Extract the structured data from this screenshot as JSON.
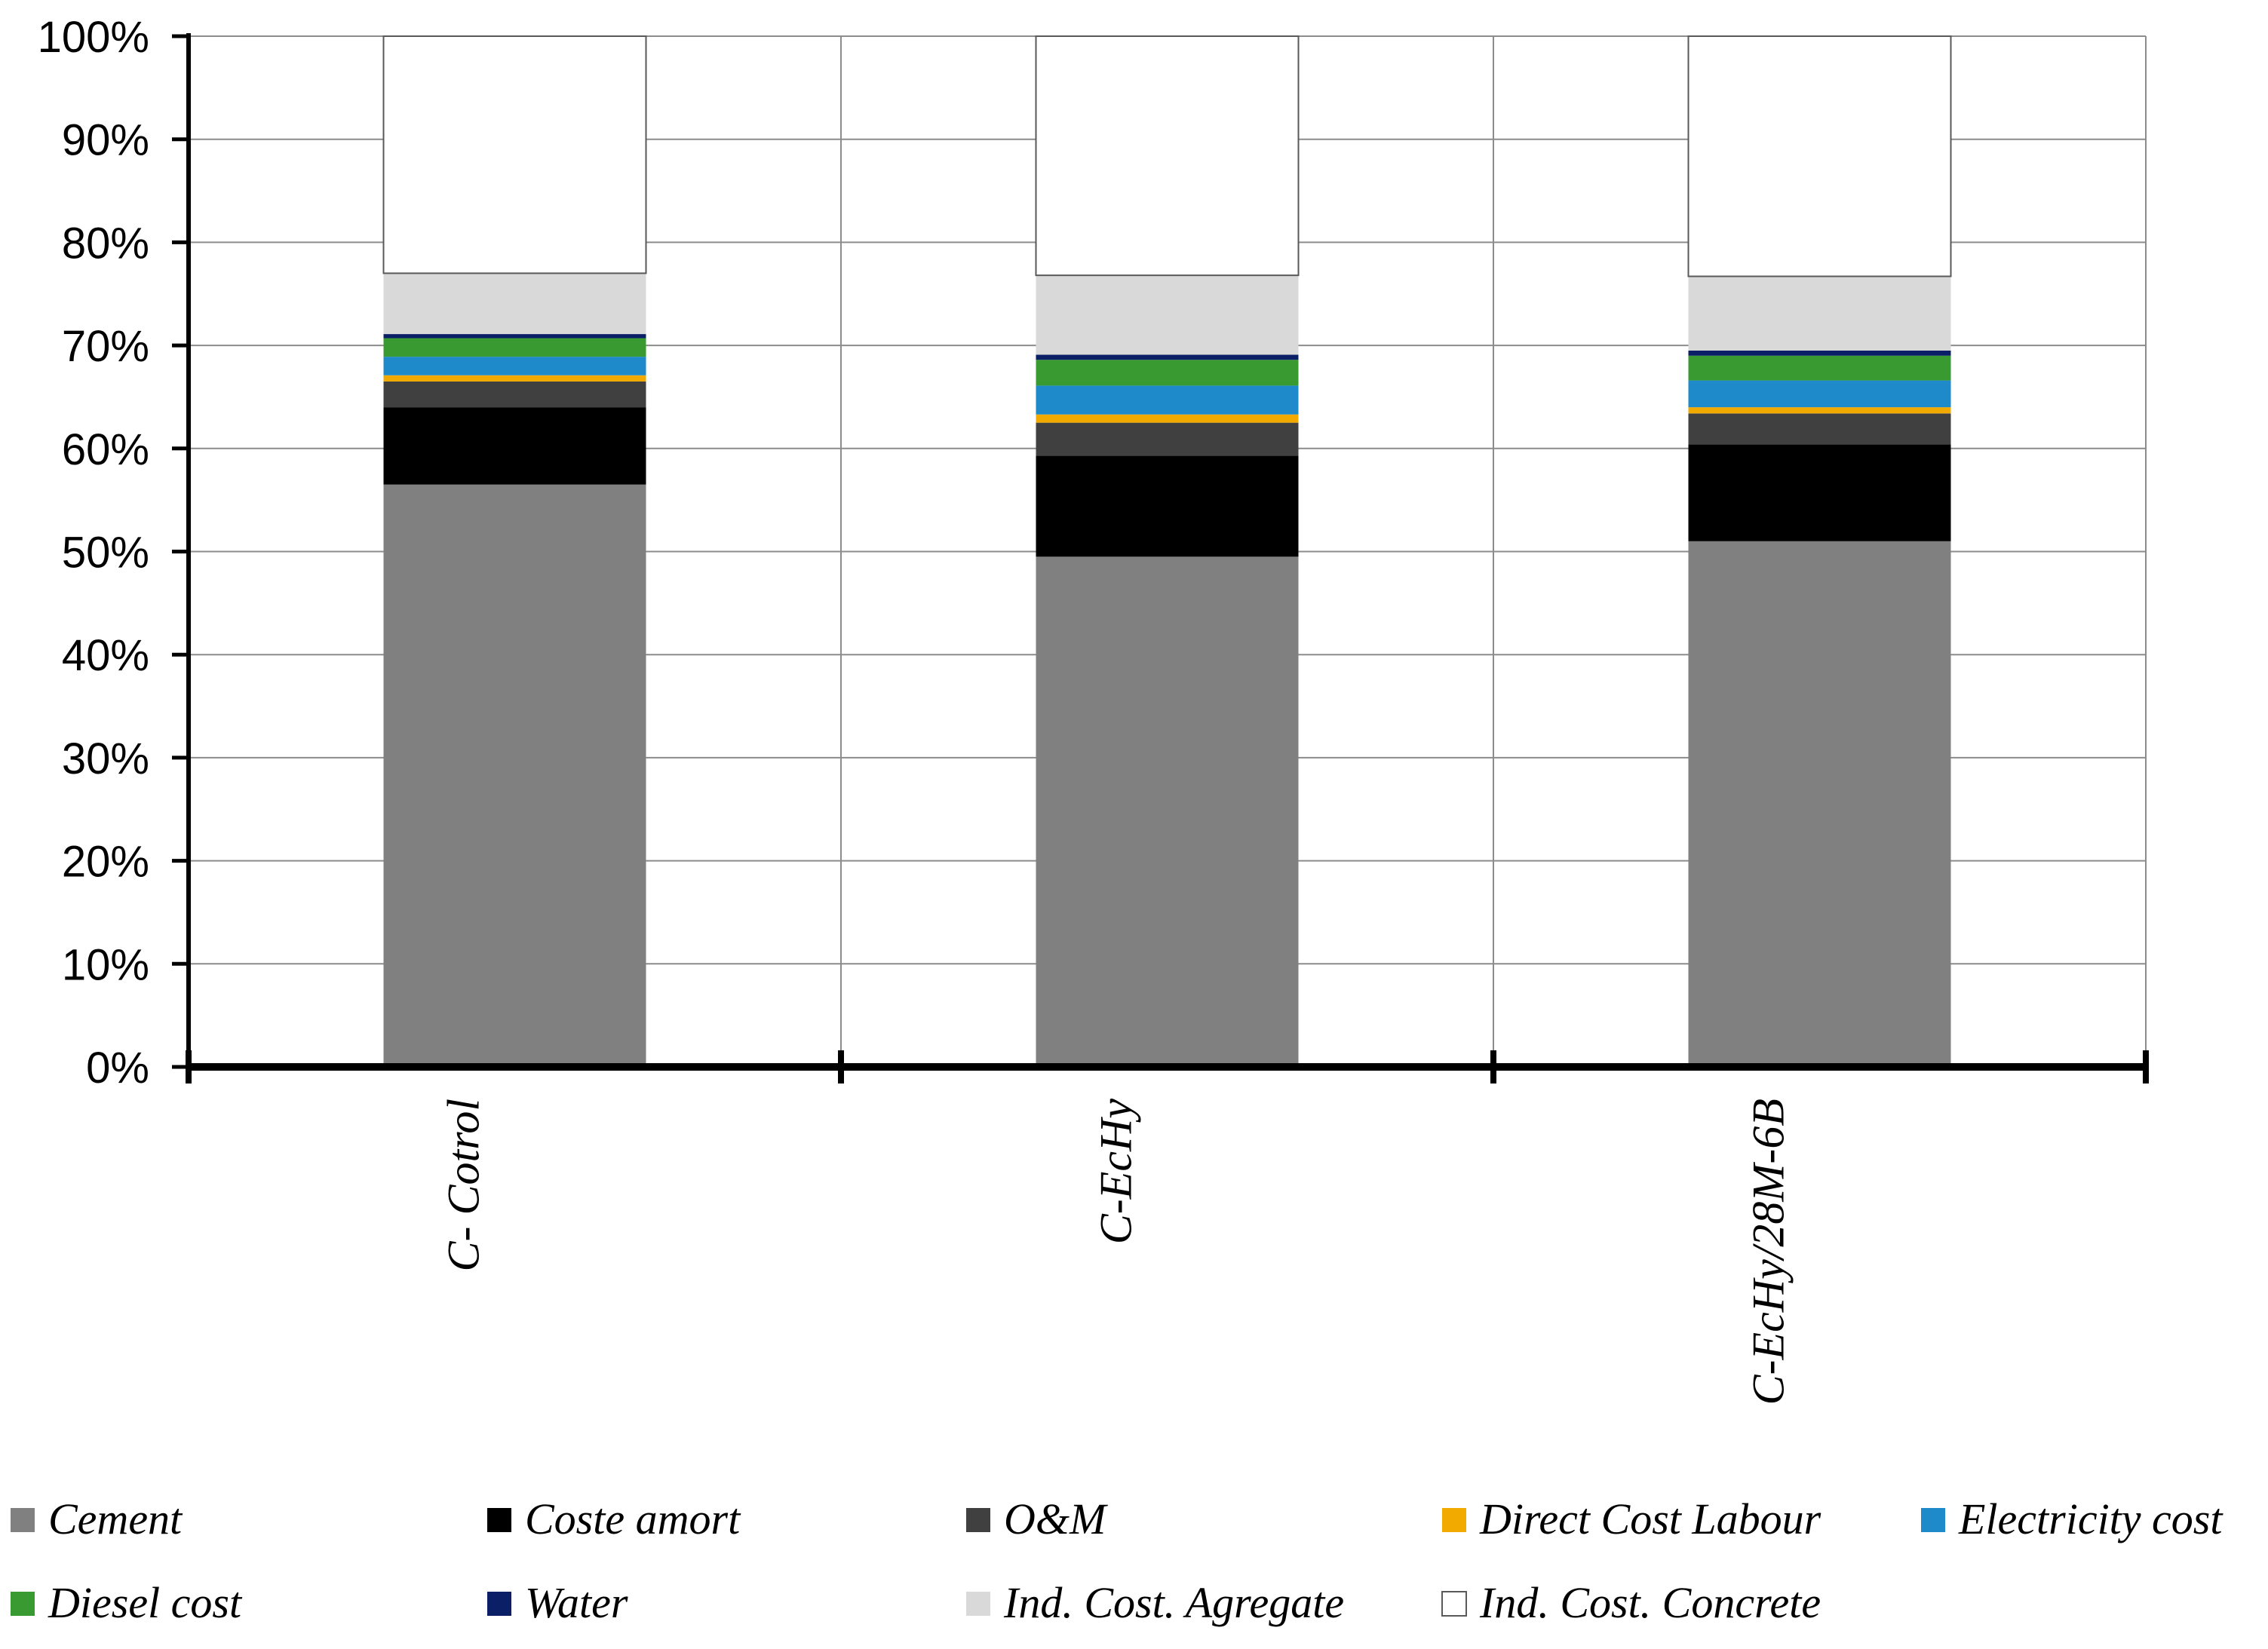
{
  "chart_data": {
    "type": "bar",
    "stacked": true,
    "normalized": true,
    "title": "",
    "xlabel": "",
    "ylabel": "",
    "ylim": [
      0,
      100
    ],
    "y_tick_labels": [
      "0%",
      "10%",
      "20%",
      "30%",
      "40%",
      "50%",
      "60%",
      "70%",
      "80%",
      "90%",
      "100%"
    ],
    "grid": true,
    "legend_position": "bottom",
    "categories": [
      "C- Cotrol",
      "C-EcHy",
      "C-EcHy/28M-6B"
    ],
    "series": [
      {
        "name": "Cement",
        "color": "#808080",
        "values": [
          56.5,
          49.5,
          51.0
        ]
      },
      {
        "name": "Coste amort",
        "color": "#000000",
        "values": [
          7.5,
          9.8,
          9.4
        ]
      },
      {
        "name": "O&M",
        "color": "#404040",
        "values": [
          2.5,
          3.2,
          3.0
        ]
      },
      {
        "name": "Direct Cost Labour",
        "color": "#F2A900",
        "values": [
          0.6,
          0.8,
          0.6
        ]
      },
      {
        "name": "Electricity cost",
        "color": "#1F8AC9",
        "values": [
          1.8,
          2.8,
          2.6
        ]
      },
      {
        "name": "Diesel cost",
        "color": "#3A9A32",
        "values": [
          1.8,
          2.5,
          2.4
        ]
      },
      {
        "name": "Water",
        "color": "#0A1F66",
        "values": [
          0.4,
          0.5,
          0.5
        ]
      },
      {
        "name": "Ind. Cost. Agregate",
        "color": "#D9D9D9",
        "values": [
          5.9,
          7.7,
          7.2
        ]
      },
      {
        "name": "Ind. Cost. Concrete",
        "color": "#FFFFFF",
        "values": [
          23.0,
          23.2,
          23.3
        ]
      }
    ]
  }
}
